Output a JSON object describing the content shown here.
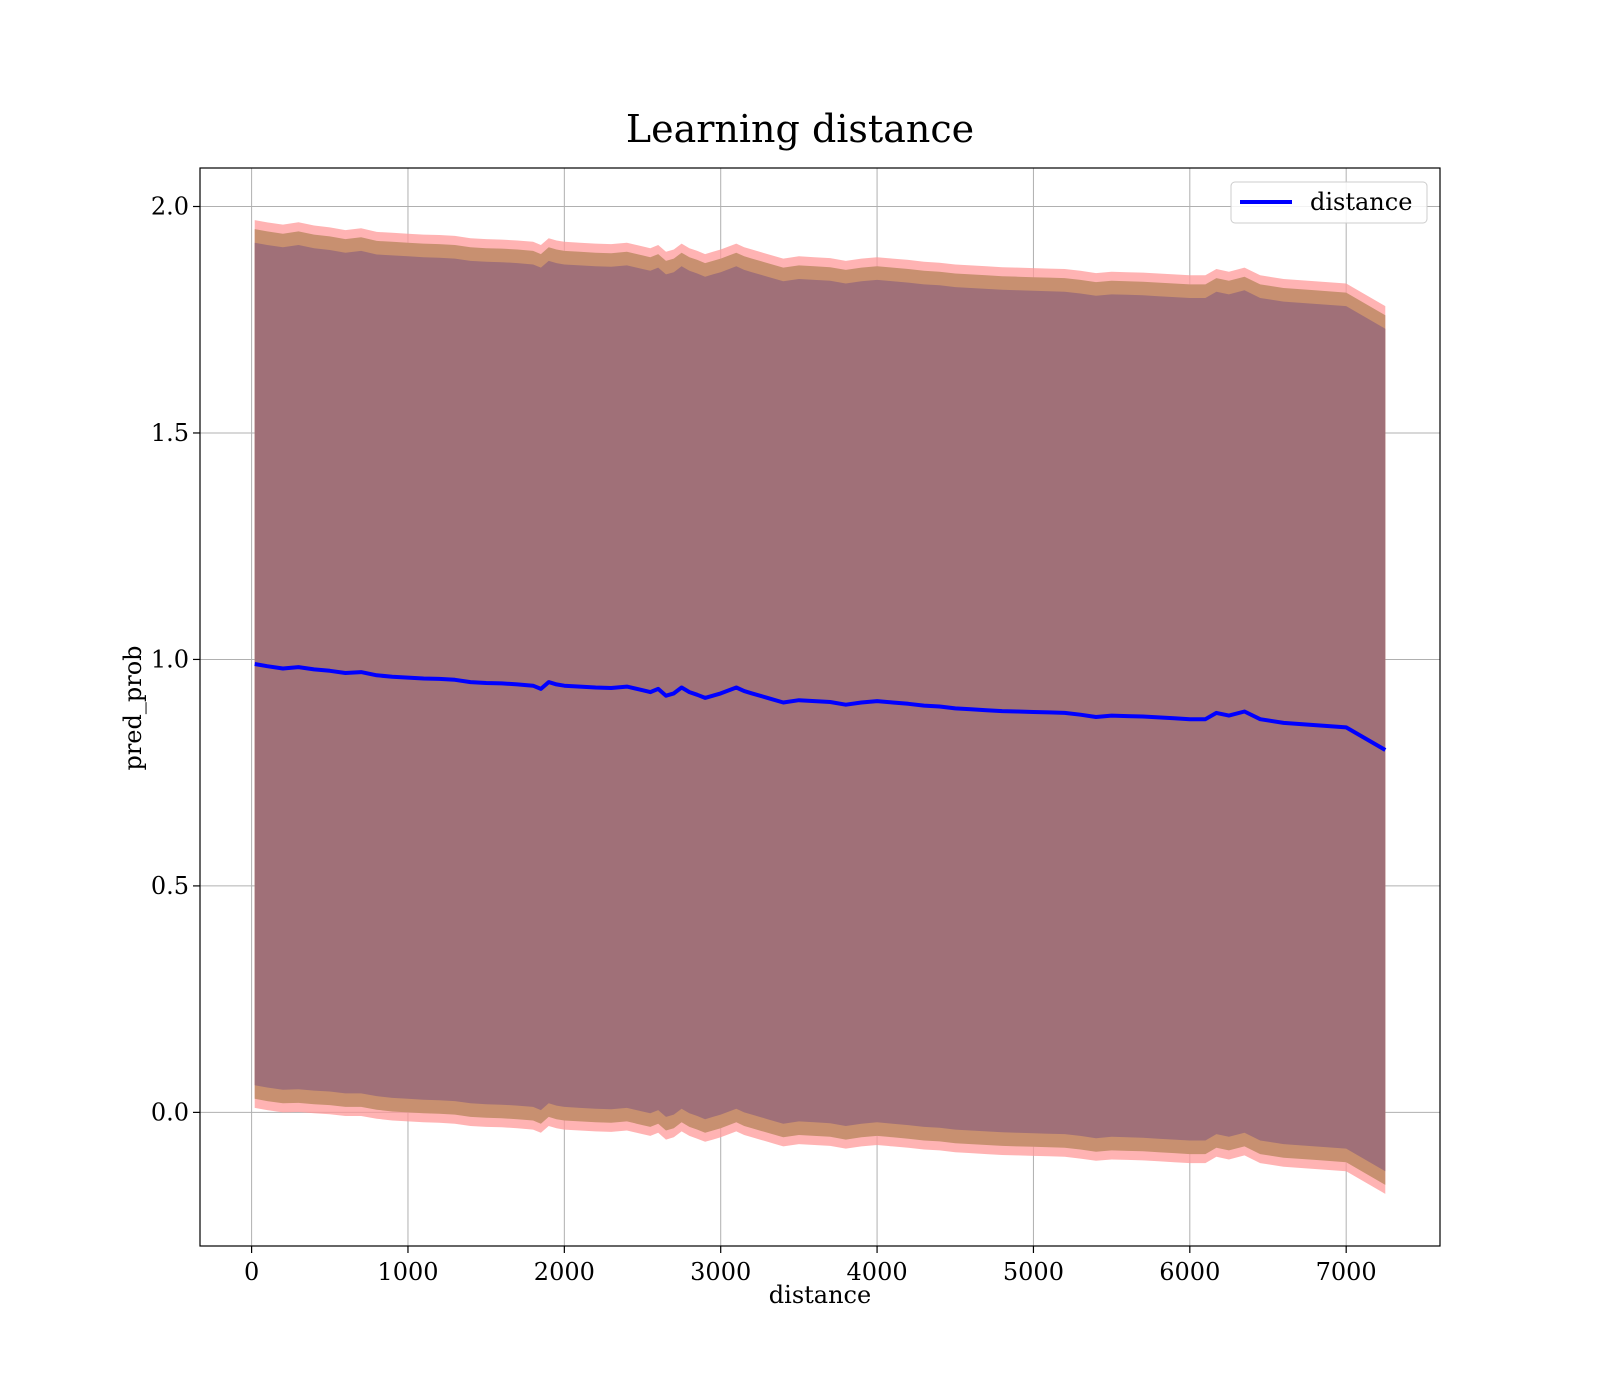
{
  "chart_data": {
    "type": "line",
    "title": "Learning distance",
    "xlabel": "distance",
    "ylabel": "pred_prob",
    "xlim": [
      -330,
      7600
    ],
    "ylim": [
      -0.295,
      2.085
    ],
    "xticks": [
      0,
      1000,
      2000,
      3000,
      4000,
      5000,
      6000,
      7000
    ],
    "yticks": [
      0.0,
      0.5,
      1.0,
      1.5,
      2.0
    ],
    "xtick_labels": [
      "0",
      "1000",
      "2000",
      "3000",
      "4000",
      "5000",
      "6000",
      "7000"
    ],
    "ytick_labels": [
      "0.0",
      "0.5",
      "1.0",
      "1.5",
      "2.0"
    ],
    "grid": true,
    "legend": {
      "position": "upper-right",
      "entries": [
        "distance"
      ]
    },
    "colors": {
      "line": "#0000ff",
      "band_outer": "#ff9999",
      "band_middle": "#c89070",
      "band_inner": "#a07078",
      "grid": "#b0b0b0"
    },
    "series": [
      {
        "name": "distance",
        "x": [
          20,
          100,
          200,
          300,
          400,
          500,
          600,
          700,
          800,
          900,
          1000,
          1100,
          1200,
          1300,
          1400,
          1500,
          1600,
          1700,
          1800,
          1850,
          1900,
          1950,
          2000,
          2100,
          2200,
          2300,
          2400,
          2500,
          2550,
          2600,
          2650,
          2700,
          2750,
          2800,
          2850,
          2900,
          2950,
          3000,
          3100,
          3150,
          3200,
          3300,
          3400,
          3500,
          3600,
          3700,
          3800,
          3900,
          4000,
          4100,
          4200,
          4300,
          4400,
          4500,
          4600,
          4700,
          4800,
          4900,
          5000,
          5100,
          5200,
          5300,
          5400,
          5500,
          5600,
          5700,
          5800,
          5900,
          6000,
          6100,
          6170,
          6250,
          6350,
          6450,
          6600,
          6800,
          7000,
          7250
        ],
        "y": [
          0.99,
          0.985,
          0.98,
          0.983,
          0.978,
          0.975,
          0.97,
          0.972,
          0.965,
          0.962,
          0.96,
          0.958,
          0.957,
          0.955,
          0.95,
          0.948,
          0.947,
          0.945,
          0.942,
          0.935,
          0.95,
          0.945,
          0.942,
          0.94,
          0.938,
          0.937,
          0.94,
          0.932,
          0.928,
          0.935,
          0.92,
          0.925,
          0.938,
          0.928,
          0.922,
          0.915,
          0.92,
          0.925,
          0.938,
          0.93,
          0.925,
          0.915,
          0.905,
          0.91,
          0.908,
          0.906,
          0.9,
          0.905,
          0.908,
          0.905,
          0.902,
          0.898,
          0.896,
          0.892,
          0.89,
          0.888,
          0.886,
          0.885,
          0.884,
          0.883,
          0.882,
          0.878,
          0.873,
          0.876,
          0.875,
          0.874,
          0.872,
          0.87,
          0.868,
          0.868,
          0.882,
          0.876,
          0.885,
          0.868,
          0.86,
          0.855,
          0.85,
          0.8
        ],
        "std": [
          0.93,
          0.93,
          0.93,
          0.932,
          0.93,
          0.929,
          0.928,
          0.93,
          0.929,
          0.93,
          0.93,
          0.93,
          0.93,
          0.93,
          0.93,
          0.93,
          0.93,
          0.93,
          0.93,
          0.93,
          0.93,
          0.93,
          0.93,
          0.93,
          0.93,
          0.93,
          0.93,
          0.93,
          0.93,
          0.93,
          0.93,
          0.93,
          0.93,
          0.93,
          0.93,
          0.93,
          0.93,
          0.93,
          0.93,
          0.93,
          0.93,
          0.93,
          0.93,
          0.93,
          0.93,
          0.93,
          0.93,
          0.93,
          0.93,
          0.93,
          0.93,
          0.93,
          0.93,
          0.93,
          0.93,
          0.93,
          0.93,
          0.93,
          0.93,
          0.93,
          0.93,
          0.93,
          0.93,
          0.93,
          0.93,
          0.93,
          0.93,
          0.93,
          0.93,
          0.93,
          0.93,
          0.93,
          0.93,
          0.93,
          0.93,
          0.93,
          0.93,
          0.93
        ],
        "band_half_widths": [
          0.98,
          0.96,
          0.93
        ]
      }
    ]
  }
}
